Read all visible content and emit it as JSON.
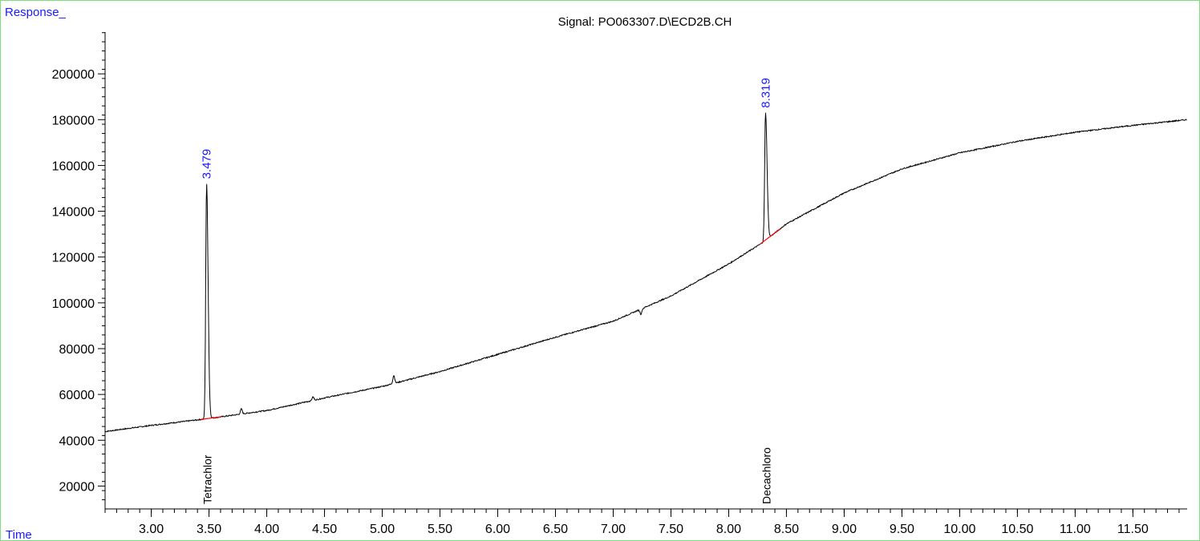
{
  "chart_data": {
    "type": "line",
    "title": "Signal: PO063307.D\\ECD2B.CH",
    "ylabel": "Response_",
    "xlabel": "Time",
    "xlim": [
      2.6,
      11.97
    ],
    "ylim": [
      10000,
      220000
    ],
    "x_ticks": [
      3.0,
      3.5,
      4.0,
      4.5,
      5.0,
      5.5,
      6.0,
      6.5,
      7.0,
      7.5,
      8.0,
      8.5,
      9.0,
      9.5,
      10.0,
      10.5,
      11.0,
      11.5
    ],
    "x_tick_labels": [
      "3.00",
      "3.50",
      "4.00",
      "4.50",
      "5.00",
      "5.50",
      "6.00",
      "6.50",
      "7.00",
      "7.50",
      "8.00",
      "8.50",
      "9.00",
      "9.50",
      "10.00",
      "10.50",
      "11.00",
      "11.50"
    ],
    "x_minor_step": 0.1,
    "y_ticks": [
      20000,
      40000,
      60000,
      80000,
      100000,
      120000,
      140000,
      160000,
      180000,
      200000
    ],
    "y_tick_labels": [
      "20000",
      "40000",
      "60000",
      "80000",
      "100000",
      "120000",
      "140000",
      "160000",
      "180000",
      "200000"
    ],
    "y_minor_step": 4000,
    "baseline": {
      "x": [
        2.6,
        3.0,
        3.5,
        4.0,
        4.5,
        5.0,
        5.5,
        6.0,
        6.5,
        7.0,
        7.5,
        8.0,
        8.3,
        8.5,
        9.0,
        9.5,
        10.0,
        10.5,
        11.0,
        11.5,
        11.97
      ],
      "y": [
        43800,
        46500,
        49500,
        53000,
        58500,
        63500,
        70000,
        77500,
        85000,
        92000,
        103000,
        117000,
        126500,
        134500,
        148000,
        158500,
        165500,
        170500,
        174500,
        177500,
        180000
      ]
    },
    "peaks": [
      {
        "rt": 3.479,
        "label": "3.479",
        "apex": 152000,
        "compound": "Tetrachlor"
      },
      {
        "rt": 8.319,
        "label": "8.319",
        "apex": 183000,
        "compound": "Decachloro"
      }
    ],
    "minor_peaks": [
      {
        "rt": 3.78,
        "height": 2200
      },
      {
        "rt": 4.4,
        "height": 1500
      },
      {
        "rt": 5.1,
        "height": 3500
      },
      {
        "rt": 7.24,
        "height": -2200
      }
    ],
    "colors": {
      "trace": "#000000",
      "integration_baseline": "#ff0000",
      "labels": "#1a1aff",
      "frame": "#7dde7d"
    }
  }
}
